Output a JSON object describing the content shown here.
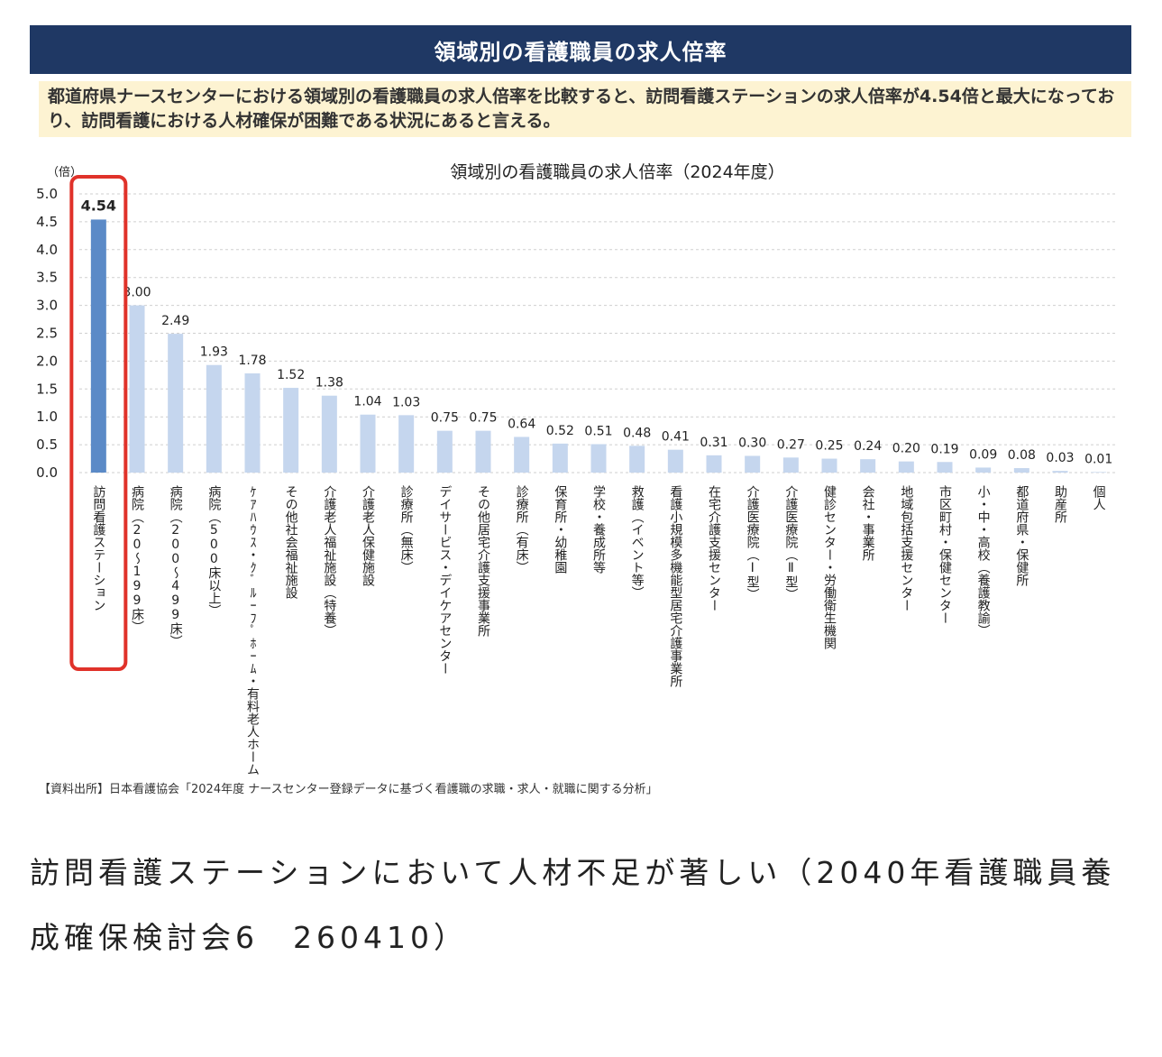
{
  "header": {
    "title": "領域別の看護職員の求人倍率"
  },
  "summary": {
    "text": "都道府県ナースセンターにおける領域別の看護職員の求人倍率を比較すると、訪問看護ステーションの求人倍率が4.54倍と最大になっており、訪問看護における人材確保が困難である状況にあると言える。"
  },
  "colors": {
    "header_bg": "#1f3864",
    "summary_bg": "#fdf3d2",
    "highlight_bar": "#5b8ac7",
    "bar": "#c5d6ee",
    "highlight_box": "#e0322a"
  },
  "chart_data": {
    "type": "bar",
    "title": "領域別の看護職員の求人倍率（2024年度）",
    "ylabel": "（倍）",
    "ylim": [
      0,
      5.0
    ],
    "yticks": [
      "0.0",
      "0.5",
      "1.0",
      "1.5",
      "2.0",
      "2.5",
      "3.0",
      "3.5",
      "4.0",
      "4.5",
      "5.0"
    ],
    "grid": true,
    "highlight_index": 0,
    "categories": [
      "訪問看護ステーション",
      "病院（20～199床）",
      "病院（200～499床）",
      "病院（500床以上）",
      "ｹｱﾊｳｽ・ｸﾞﾙｰﾌﾟﾎｰﾑ・有料老人ホーム",
      "その他社会福祉施設",
      "介護老人福祉施設（特養）",
      "介護老人保健施設",
      "診療所（無床）",
      "デイサービス・デイケアセンター",
      "その他居宅介護支援事業所",
      "診療所（有床）",
      "保育所・幼稚園",
      "学校・養成所等",
      "救護（イベント等）",
      "看護小規模多機能型居宅介護事業所",
      "在宅介護支援センター",
      "介護医療院（Ⅰ型）",
      "介護医療院（Ⅱ型）",
      "健診センター・労働衛生機関",
      "会社・事業所",
      "地域包括支援センター",
      "市区町村・保健センター",
      "小・中・高校（養護教諭）",
      "都道府県・保健所",
      "助産所",
      "個人"
    ],
    "values": [
      4.54,
      3.0,
      2.49,
      1.93,
      1.78,
      1.52,
      1.38,
      1.04,
      1.03,
      0.75,
      0.75,
      0.64,
      0.52,
      0.51,
      0.48,
      0.41,
      0.31,
      0.3,
      0.27,
      0.25,
      0.24,
      0.2,
      0.19,
      0.09,
      0.08,
      0.03,
      0.01
    ],
    "value_labels": [
      "4.54",
      "3.00",
      "2.49",
      "1.93",
      "1.78",
      "1.52",
      "1.38",
      "1.04",
      "1.03",
      "0.75",
      "0.75",
      "0.64",
      "0.52",
      "0.51",
      "0.48",
      "0.41",
      "0.31",
      "0.30",
      "0.27",
      "0.25",
      "0.24",
      "0.20",
      "0.19",
      "0.09",
      "0.08",
      "0.03",
      "0.01"
    ]
  },
  "source": {
    "text": "【資料出所】日本看護協会「2024年度 ナースセンター登録データに基づく看護職の求職・求人・就職に関する分析」"
  },
  "caption": {
    "text": "訪問看護ステーションにおいて人材不足が著しい（2040年看護職員養成確保検討会6　260410）"
  }
}
